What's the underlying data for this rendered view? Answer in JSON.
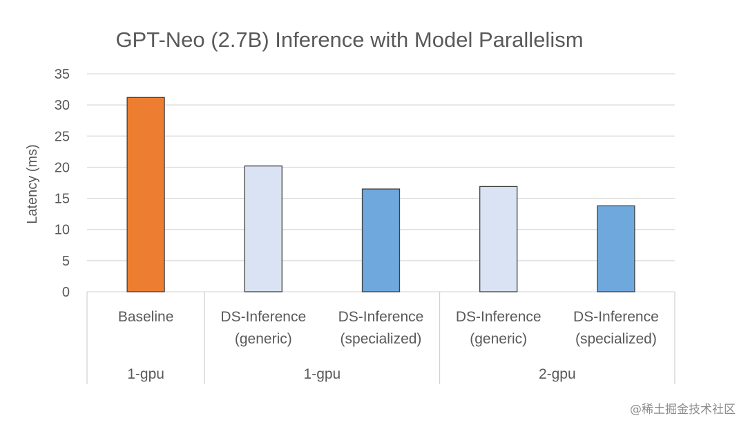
{
  "chart_data": {
    "type": "bar",
    "title": "GPT-Neo (2.7B) Inference with Model Parallelism",
    "ylabel": "Latency (ms)",
    "xlabel": "",
    "ylim": [
      0,
      35
    ],
    "yticks": [
      0,
      5,
      10,
      15,
      20,
      25,
      30,
      35
    ],
    "grid": true,
    "categories": [
      {
        "lines": [
          "Baseline"
        ],
        "group": "1-gpu",
        "value": 31.2,
        "color": "#ED7D31"
      },
      {
        "lines": [
          "DS-Inference",
          "(generic)"
        ],
        "group": "1-gpu",
        "value": 20.2,
        "color": "#DAE3F3"
      },
      {
        "lines": [
          "DS-Inference",
          "(specialized)"
        ],
        "group": "1-gpu",
        "value": 16.5,
        "color": "#6FA8DC"
      },
      {
        "lines": [
          "DS-Inference",
          "(generic)"
        ],
        "group": "2-gpu",
        "value": 16.9,
        "color": "#DAE3F3"
      },
      {
        "lines": [
          "DS-Inference",
          "(specialized)"
        ],
        "group": "2-gpu",
        "value": 13.8,
        "color": "#6FA8DC"
      }
    ],
    "groups": [
      {
        "label": "1-gpu",
        "span": 1
      },
      {
        "label": "1-gpu",
        "span": 2
      },
      {
        "label": "2-gpu",
        "span": 2
      }
    ]
  },
  "watermark": "@稀土掘金技术社区"
}
